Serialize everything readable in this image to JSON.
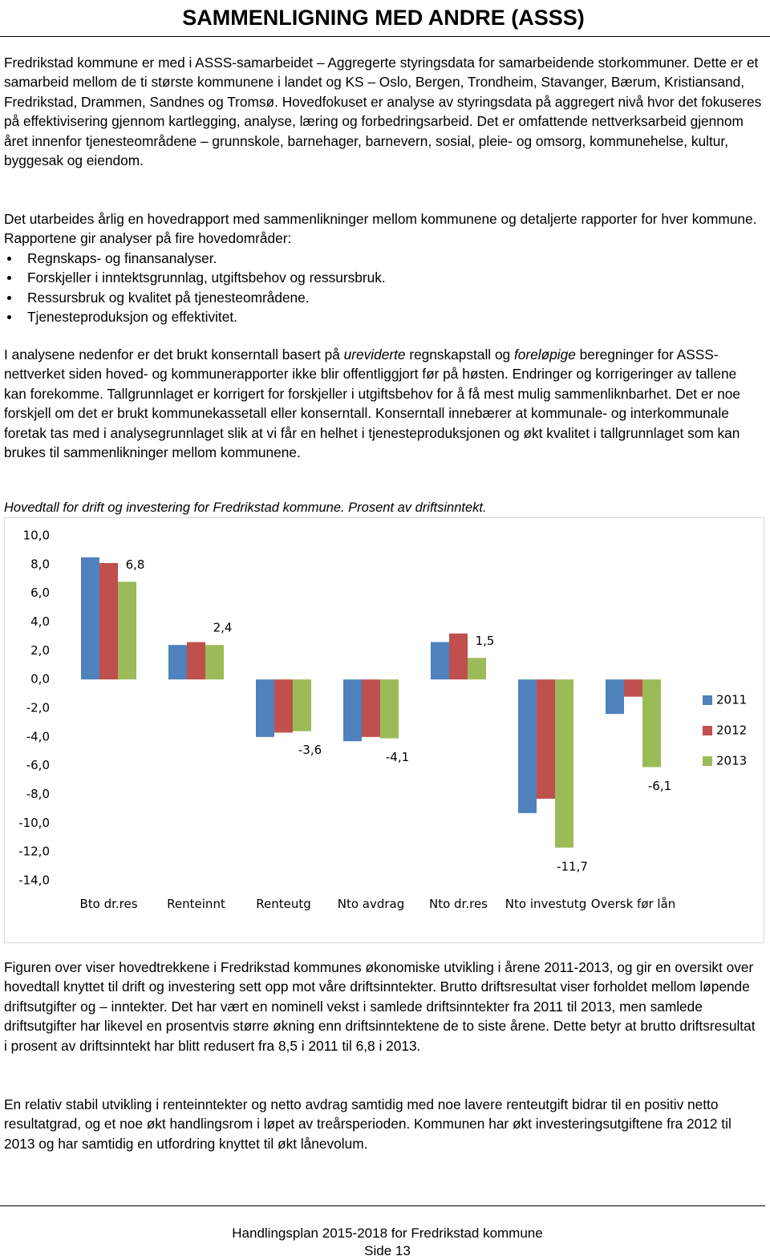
{
  "header": {
    "title": "SAMMENLIGNING MED ANDRE (ASSS)"
  },
  "intro": {
    "paragraph1": "Fredrikstad kommune er med i ASSS-samarbeidet – Aggregerte styringsdata for samarbeidende storkommuner. Dette er et samarbeid mellom de ti største kommunene i landet og KS – Oslo, Bergen, Trondheim, Stavanger, Bærum, Kristiansand, Fredrikstad, Drammen, Sandnes og Tromsø. Hovedfokuset er analyse av styringsdata på aggregert nivå hvor det fokuseres på effektivisering gjennom kartlegging, analyse, læring og forbedringsarbeid. Det er omfattende nettverksarbeid gjennom året innenfor tjenesteområdene – grunnskole, barnehager, barnevern, sosial, pleie- og omsorg, kommunehelse, kultur, byggesak og eiendom.",
    "paragraph2": "Det utarbeides årlig en hovedrapport med sammenlikninger mellom kommunene og detaljerte rapporter for hver kommune. Rapportene gir analyser på fire hovedområder:",
    "bullets": [
      "Regnskaps- og finansanalyser.",
      "Forskjeller i inntektsgrunnlag, utgiftsbehov og ressursbruk.",
      "Ressursbruk og kvalitet på tjenesteområdene.",
      "Tjenesteproduksjon og effektivitet."
    ],
    "paragraph3": [
      "I analysene nedenfor er det brukt konserntall basert på ",
      "ureviderte",
      " regnskapstall og ",
      "foreløpige",
      " beregninger for ASSS-nettverket siden hoved- og kommunerapporter ikke blir offentliggjort før på høsten. Endringer og korrigeringer av tallene kan forekomme. Tallgrunnlaget er korrigert for forskjeller i utgiftsbehov for å få mest mulig sammenliknbarhet. Det er noe forskjell om det er brukt kommunekassetall eller konserntall. Konserntall innebærer at kommunale- og interkommunale foretak tas med i analysegrunnlaget slik at vi får en helhet i tjenesteproduksjonen og økt kvalitet i tallgrunnlaget som kan brukes til sammenlikninger mellom kommunene."
    ]
  },
  "chart_data": {
    "type": "bar",
    "caption": "Hovedtall for drift og investering for Fredrikstad kommune. Prosent av driftsinntekt.",
    "categories": [
      "Bto dr.res",
      "Renteinnt",
      "Renteutg",
      "Nto avdrag",
      "Nto dr.res",
      "Nto investutg",
      "Oversk før lån"
    ],
    "series": [
      {
        "name": "2011",
        "color": "#4f81bd",
        "values": [
          8.5,
          2.4,
          -4.0,
          -4.3,
          2.6,
          -9.3,
          -2.4
        ]
      },
      {
        "name": "2012",
        "color": "#c0504d",
        "values": [
          8.1,
          2.6,
          -3.7,
          -4.0,
          3.2,
          -8.3,
          -1.2
        ]
      },
      {
        "name": "2013",
        "color": "#9bbb59",
        "values": [
          6.8,
          2.4,
          -3.6,
          -4.1,
          1.5,
          -11.7,
          -6.1
        ],
        "value_labels": [
          "6,8",
          "2,4",
          "-3,6",
          "-4,1",
          "1,5",
          "-11,7",
          "-6,1"
        ]
      }
    ],
    "ylim": [
      -14,
      10
    ],
    "yticks": [
      {
        "value": -14,
        "label": "-14,0"
      },
      {
        "value": -12,
        "label": "-12,0"
      },
      {
        "value": -10,
        "label": "-10,0"
      },
      {
        "value": -8,
        "label": "-8,0"
      },
      {
        "value": -6,
        "label": "-6,0"
      },
      {
        "value": -4,
        "label": "-4,0"
      },
      {
        "value": -2,
        "label": "-2,0"
      },
      {
        "value": 0,
        "label": "0,0"
      },
      {
        "value": 2,
        "label": "2,0"
      },
      {
        "value": 4,
        "label": "4,0"
      },
      {
        "value": 6,
        "label": "6,0"
      },
      {
        "value": 8,
        "label": "8,0"
      },
      {
        "value": 10,
        "label": "10,0"
      }
    ],
    "grid": false,
    "legend": "right"
  },
  "discussion": {
    "paragraph4": "Figuren over viser hovedtrekkene i Fredrikstad kommunes økonomiske utvikling i årene 2011-2013, og gir en oversikt over hovedtall knyttet til drift og investering sett opp mot våre driftsinntekter. Brutto driftsresultat viser forholdet mellom løpende driftsutgifter og – inntekter. Det har vært en nominell vekst i samlede driftsinntekter fra 2011 til 2013, men samlede driftsutgifter har likevel en prosentvis større økning enn driftsinntektene de to siste årene. Dette betyr at brutto driftsresultat i prosent av driftsinntekt har blitt redusert fra 8,5 i 2011 til 6,8 i 2013.",
    "paragraph5": "En relativ stabil utvikling i renteinntekter og netto avdrag samtidig med noe lavere renteutgift bidrar til en positiv netto resultatgrad, og et noe økt handlingsrom i løpet av treårsperioden. Kommunen har økt investeringsutgiftene fra 2012 til 2013 og har samtidig en utfordring knyttet til økt lånevolum."
  },
  "footer": {
    "document": "Handlingsplan 2015-2018 for Fredrikstad kommune",
    "page": "Side 13"
  }
}
